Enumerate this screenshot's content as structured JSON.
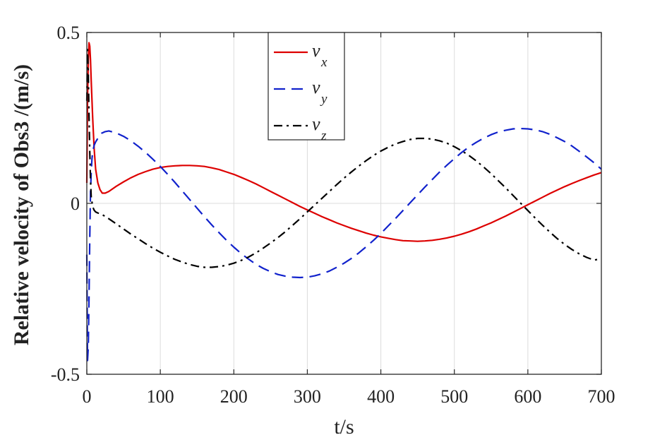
{
  "chart_data": {
    "type": "line",
    "xlabel": "t/s",
    "ylabel": "Relative velocity of Obs3 /(m/s)",
    "xlim": [
      0,
      700
    ],
    "ylim": [
      -0.5,
      0.5
    ],
    "xticks": [
      0,
      100,
      200,
      300,
      400,
      500,
      600,
      700
    ],
    "yticks": [
      -0.5,
      0,
      0.5
    ],
    "xtick_labels": [
      "0",
      "100",
      "200",
      "300",
      "400",
      "500",
      "600",
      "700"
    ],
    "ytick_labels": [
      "-0.5",
      "0",
      "0.5"
    ],
    "grid": true,
    "legend_position": "top-center",
    "series": [
      {
        "name": "v",
        "subscript": "x",
        "color": "#dd0000",
        "style": "solid",
        "x": [
          0,
          1,
          2,
          3,
          4,
          5,
          6,
          8,
          10,
          12,
          15,
          18,
          21,
          25,
          30,
          40,
          50,
          60,
          70,
          80,
          90,
          100,
          110,
          120,
          130,
          140,
          150,
          160,
          170,
          180,
          190,
          200,
          210,
          220,
          230,
          240,
          250,
          260,
          270,
          280,
          290,
          300,
          310,
          320,
          330,
          340,
          350,
          360,
          370,
          380,
          390,
          400,
          410,
          420,
          430,
          440,
          450,
          460,
          470,
          480,
          490,
          500,
          510,
          520,
          530,
          540,
          550,
          560,
          570,
          580,
          590,
          600,
          610,
          620,
          630,
          640,
          650,
          660,
          670,
          680,
          690,
          700
        ],
        "values": [
          0.06,
          0.3,
          0.42,
          0.47,
          0.46,
          0.42,
          0.36,
          0.25,
          0.16,
          0.1,
          0.06,
          0.04,
          0.03,
          0.03,
          0.035,
          0.05,
          0.063,
          0.075,
          0.085,
          0.093,
          0.1,
          0.105,
          0.108,
          0.11,
          0.111,
          0.111,
          0.11,
          0.108,
          0.104,
          0.099,
          0.092,
          0.085,
          0.076,
          0.067,
          0.057,
          0.046,
          0.035,
          0.024,
          0.013,
          0.002,
          -0.009,
          -0.019,
          -0.029,
          -0.039,
          -0.048,
          -0.057,
          -0.065,
          -0.073,
          -0.08,
          -0.087,
          -0.093,
          -0.098,
          -0.102,
          -0.106,
          -0.109,
          -0.11,
          -0.111,
          -0.11,
          -0.108,
          -0.105,
          -0.101,
          -0.096,
          -0.09,
          -0.083,
          -0.075,
          -0.066,
          -0.057,
          -0.047,
          -0.037,
          -0.026,
          -0.015,
          -0.004,
          0.007,
          0.018,
          0.029,
          0.039,
          0.049,
          0.058,
          0.067,
          0.075,
          0.083,
          0.09
        ]
      },
      {
        "name": "v",
        "subscript": "y",
        "color": "#1122cc",
        "style": "dashed",
        "x": [
          0,
          1,
          2,
          3,
          4,
          5,
          6,
          7,
          8,
          10,
          12,
          15,
          18,
          20,
          25,
          30,
          40,
          50,
          60,
          70,
          80,
          90,
          100,
          110,
          120,
          130,
          140,
          150,
          160,
          170,
          180,
          190,
          200,
          210,
          220,
          230,
          240,
          250,
          260,
          270,
          280,
          290,
          300,
          310,
          320,
          330,
          340,
          350,
          360,
          370,
          380,
          390,
          400,
          410,
          420,
          430,
          440,
          450,
          460,
          470,
          480,
          490,
          500,
          510,
          520,
          530,
          540,
          550,
          560,
          570,
          580,
          590,
          600,
          610,
          620,
          630,
          640,
          650,
          660,
          670,
          680,
          690,
          700
        ],
        "values": [
          -0.15,
          -0.46,
          -0.42,
          -0.28,
          -0.1,
          0.03,
          0.09,
          0.13,
          0.15,
          0.17,
          0.18,
          0.19,
          0.2,
          0.205,
          0.21,
          0.212,
          0.206,
          0.196,
          0.183,
          0.167,
          0.149,
          0.129,
          0.108,
          0.085,
          0.061,
          0.036,
          0.011,
          -0.014,
          -0.039,
          -0.063,
          -0.086,
          -0.108,
          -0.128,
          -0.147,
          -0.163,
          -0.178,
          -0.19,
          -0.2,
          -0.208,
          -0.213,
          -0.216,
          -0.217,
          -0.216,
          -0.212,
          -0.206,
          -0.198,
          -0.187,
          -0.175,
          -0.161,
          -0.145,
          -0.127,
          -0.108,
          -0.088,
          -0.066,
          -0.044,
          -0.021,
          0.002,
          0.025,
          0.048,
          0.07,
          0.092,
          0.112,
          0.131,
          0.149,
          0.165,
          0.179,
          0.191,
          0.201,
          0.209,
          0.214,
          0.218,
          0.219,
          0.218,
          0.215,
          0.21,
          0.202,
          0.192,
          0.181,
          0.168,
          0.152,
          0.136,
          0.119,
          0.1
        ]
      },
      {
        "name": "v",
        "subscript": "z",
        "color": "#000000",
        "style": "dashdot",
        "x": [
          0,
          1,
          2,
          3,
          4,
          5,
          6,
          8,
          10,
          12,
          15,
          20,
          25,
          30,
          40,
          50,
          60,
          70,
          80,
          90,
          100,
          110,
          120,
          130,
          140,
          150,
          160,
          170,
          180,
          190,
          200,
          210,
          220,
          230,
          240,
          250,
          260,
          270,
          280,
          290,
          300,
          310,
          320,
          330,
          340,
          350,
          360,
          370,
          380,
          390,
          400,
          410,
          420,
          430,
          440,
          450,
          460,
          470,
          480,
          490,
          500,
          510,
          520,
          530,
          540,
          550,
          560,
          570,
          580,
          590,
          600,
          610,
          620,
          630,
          640,
          650,
          660,
          670,
          680,
          690,
          700
        ],
        "values": [
          0.3,
          0.45,
          0.38,
          0.26,
          0.15,
          0.07,
          0.02,
          -0.01,
          -0.02,
          -0.025,
          -0.028,
          -0.032,
          -0.038,
          -0.045,
          -0.06,
          -0.075,
          -0.09,
          -0.104,
          -0.118,
          -0.131,
          -0.143,
          -0.154,
          -0.164,
          -0.172,
          -0.179,
          -0.184,
          -0.187,
          -0.187,
          -0.185,
          -0.181,
          -0.175,
          -0.167,
          -0.157,
          -0.145,
          -0.131,
          -0.116,
          -0.1,
          -0.083,
          -0.064,
          -0.045,
          -0.025,
          -0.005,
          0.015,
          0.035,
          0.055,
          0.074,
          0.092,
          0.109,
          0.125,
          0.14,
          0.153,
          0.164,
          0.174,
          0.181,
          0.187,
          0.19,
          0.19,
          0.188,
          0.183,
          0.176,
          0.166,
          0.154,
          0.14,
          0.124,
          0.106,
          0.087,
          0.066,
          0.045,
          0.023,
          0.001,
          -0.021,
          -0.043,
          -0.064,
          -0.084,
          -0.103,
          -0.12,
          -0.135,
          -0.148,
          -0.158,
          -0.166,
          -0.162
        ]
      }
    ]
  }
}
